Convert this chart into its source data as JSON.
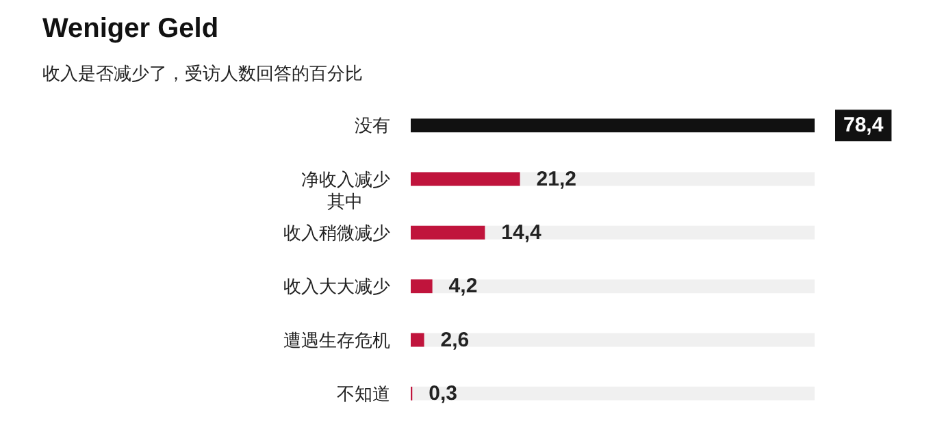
{
  "chart_data": {
    "type": "bar",
    "orientation": "horizontal",
    "title": "Weniger Geld",
    "subtitle": "收入是否减少了，受访人数回答的百分比",
    "categories": [
      "没有",
      "净收入减少",
      "收入稍微减少",
      "收入大大减少",
      "遭遇生存危机",
      "不知道"
    ],
    "values": [
      78.4,
      21.2,
      14.4,
      4.2,
      2.6,
      0.3
    ],
    "value_labels": [
      "78,4",
      "21,2",
      "14,4",
      "4,2",
      "2,6",
      "0,3"
    ],
    "colors": [
      "#111111",
      "#c0143c",
      "#c0143c",
      "#c0143c",
      "#c0143c",
      "#c0143c"
    ],
    "annotations": [
      "其中"
    ]
  }
}
